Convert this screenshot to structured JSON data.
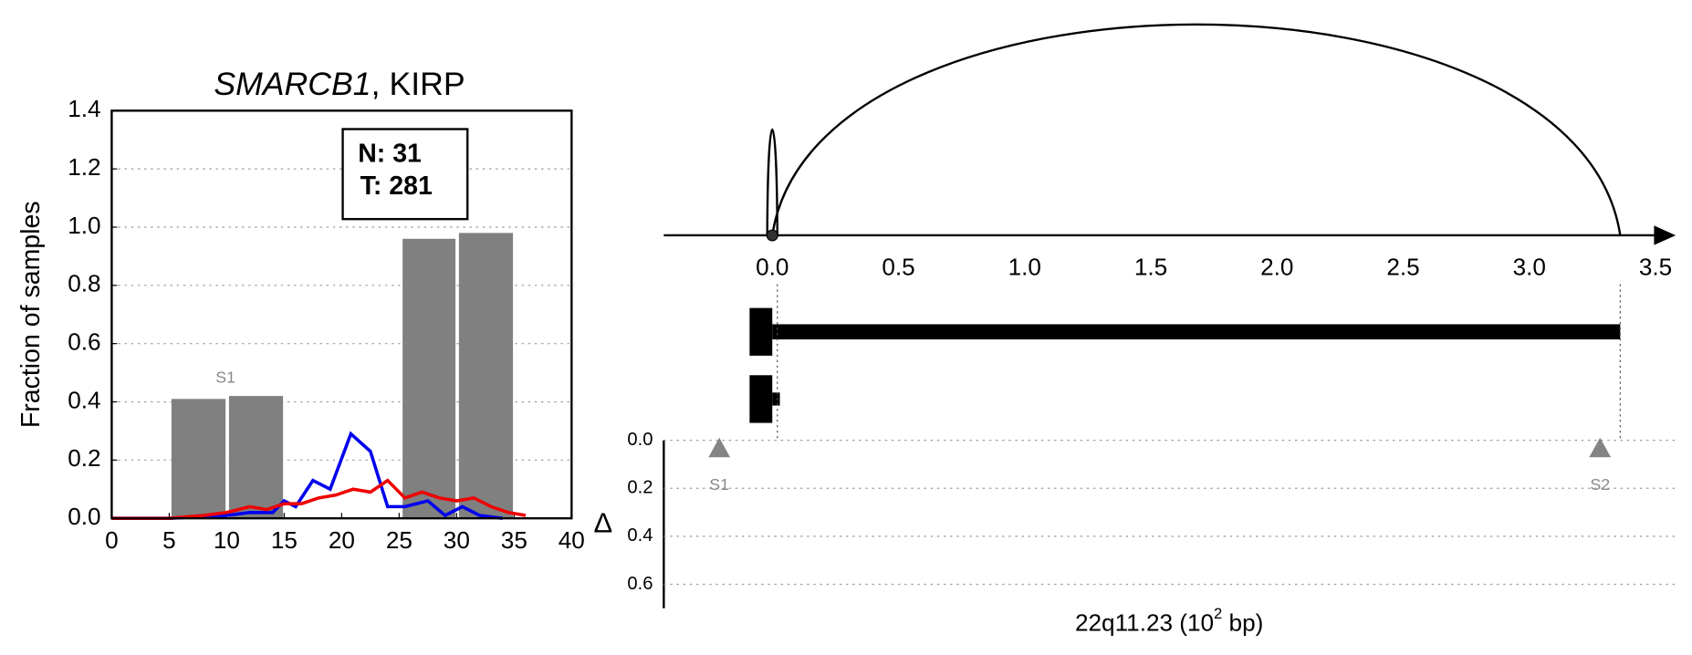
{
  "chart_data": [
    {
      "type": "bar-line",
      "title_parts": [
        "SMARCB1",
        ", KIRP"
      ],
      "y_label": "Fraction of samples",
      "xlim": [
        0,
        40
      ],
      "xticks": [
        0,
        5,
        10,
        15,
        20,
        25,
        30,
        35,
        40
      ],
      "ylim": [
        0,
        1.4
      ],
      "yticks": [
        {
          "value": 0,
          "label": "0.0"
        },
        {
          "value": 0.2,
          "label": "0.2"
        },
        {
          "value": 0.4,
          "label": "0.4"
        },
        {
          "value": 0.6,
          "label": "0.6"
        },
        {
          "value": 0.8,
          "label": "0.8"
        },
        {
          "value": 1,
          "label": "1.0"
        },
        {
          "value": 1.2,
          "label": "1.2"
        },
        {
          "value": 1.4,
          "label": "1.4"
        }
      ],
      "grid": true,
      "bar_color": "#808080",
      "bar_left": [
        5.2,
        10.2,
        25.3,
        30.2
      ],
      "bar_right": [
        9.9,
        14.9,
        29.9,
        34.9
      ],
      "bar_values": [
        0.41,
        0.42,
        0.96,
        0.98
      ],
      "annotations": [
        {
          "text": "S1",
          "x": 9.9,
          "y": 0.48
        }
      ],
      "series": [
        {
          "color": "#0000ee",
          "x": [
            0,
            5,
            10,
            12,
            14,
            15,
            16,
            17.5,
            19,
            20.8,
            22.5,
            24,
            25.5,
            27.5,
            29,
            30.5,
            32,
            34
          ],
          "values": [
            0,
            0,
            0.01,
            0.02,
            0.02,
            0.06,
            0.04,
            0.13,
            0.1,
            0.29,
            0.23,
            0.04,
            0.04,
            0.06,
            0.01,
            0.04,
            0.01,
            0
          ]
        },
        {
          "color": "#ee0000",
          "x": [
            0,
            5,
            8,
            10,
            12,
            13.5,
            15,
            16.5,
            18,
            19.5,
            21,
            22.5,
            24,
            25.5,
            27,
            28.5,
            30,
            31.5,
            33,
            34.5,
            36
          ],
          "values": [
            0,
            0,
            0.01,
            0.02,
            0.04,
            0.03,
            0.05,
            0.05,
            0.07,
            0.08,
            0.1,
            0.09,
            0.13,
            0.07,
            0.09,
            0.07,
            0.06,
            0.07,
            0.04,
            0.02,
            0.01
          ]
        }
      ],
      "box_lines": [
        "N: 31",
        "T: 281"
      ]
    },
    {
      "type": "arc",
      "xlim": [
        -0.43,
        3.58
      ],
      "xticks": [
        {
          "value": 0,
          "label": "0.0"
        },
        {
          "value": 0.5,
          "label": "0.5"
        },
        {
          "value": 1,
          "label": "1.0"
        },
        {
          "value": 1.5,
          "label": "1.5"
        },
        {
          "value": 2,
          "label": "2.0"
        },
        {
          "value": 2.5,
          "label": "2.5"
        },
        {
          "value": 3,
          "label": "3.0"
        },
        {
          "value": 3.5,
          "label": "3.5"
        }
      ],
      "arcs": [
        {
          "start": 0,
          "end": 3.36
        },
        {
          "start": -0.02,
          "end": 0.02
        }
      ],
      "tracks": [
        {
          "block": [
            -0.09,
            0
          ],
          "line": [
            0,
            3.36
          ]
        },
        {
          "block": [
            -0.09,
            0
          ],
          "line": [
            0,
            0.03
          ]
        }
      ],
      "ylim": [
        0,
        0.7
      ],
      "yticks": [
        {
          "value": 0,
          "label": "0.0"
        },
        {
          "value": 0.2,
          "label": "0.2"
        },
        {
          "value": 0.4,
          "label": "0.4"
        },
        {
          "value": 0.6,
          "label": "0.6"
        }
      ],
      "y_label": "Δ",
      "markers": [
        {
          "name": "S1",
          "x": -0.21,
          "y": 0.03
        },
        {
          "name": "S2",
          "x": 3.28,
          "y": 0.03
        }
      ],
      "marker_color": "#777777",
      "x_label_parts": [
        "22q11.23 (10",
        "2",
        " bp)"
      ]
    }
  ]
}
